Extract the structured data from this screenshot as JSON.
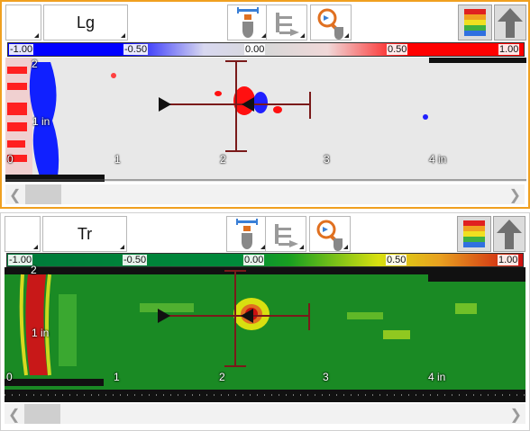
{
  "panels": [
    {
      "mode_label": "Lg",
      "scale": {
        "ticks": [
          "-1.00",
          "-0.50",
          "0.00",
          "0.50",
          "1.00"
        ]
      },
      "axis": {
        "y_top": "2",
        "y_mid": "1 in",
        "y_bottom": "0",
        "x_labels": [
          "0",
          "1",
          "2",
          "3",
          "4 in"
        ]
      },
      "colormap": [
        "#0000ff",
        "#d0d0d0",
        "#ff0000"
      ]
    },
    {
      "mode_label": "Tr",
      "scale": {
        "ticks": [
          "-1.00",
          "-0.50",
          "0.00",
          "0.50",
          "1.00"
        ]
      },
      "axis": {
        "y_top": "2",
        "y_mid": "1 in",
        "y_bottom": "0",
        "x_labels": [
          "0",
          "1",
          "2",
          "3",
          "4 in"
        ]
      },
      "colormap": [
        "#007a3a",
        "#1a9a1a",
        "#d8e010",
        "#e08020",
        "#cc1010"
      ]
    }
  ],
  "icons": {
    "tool1": "ruler-hand-icon",
    "tool2": "arrow-steps-icon",
    "tool3": "zoom-hand-icon",
    "palette": "color-palette-icon",
    "upload": "up-arrow-icon"
  }
}
